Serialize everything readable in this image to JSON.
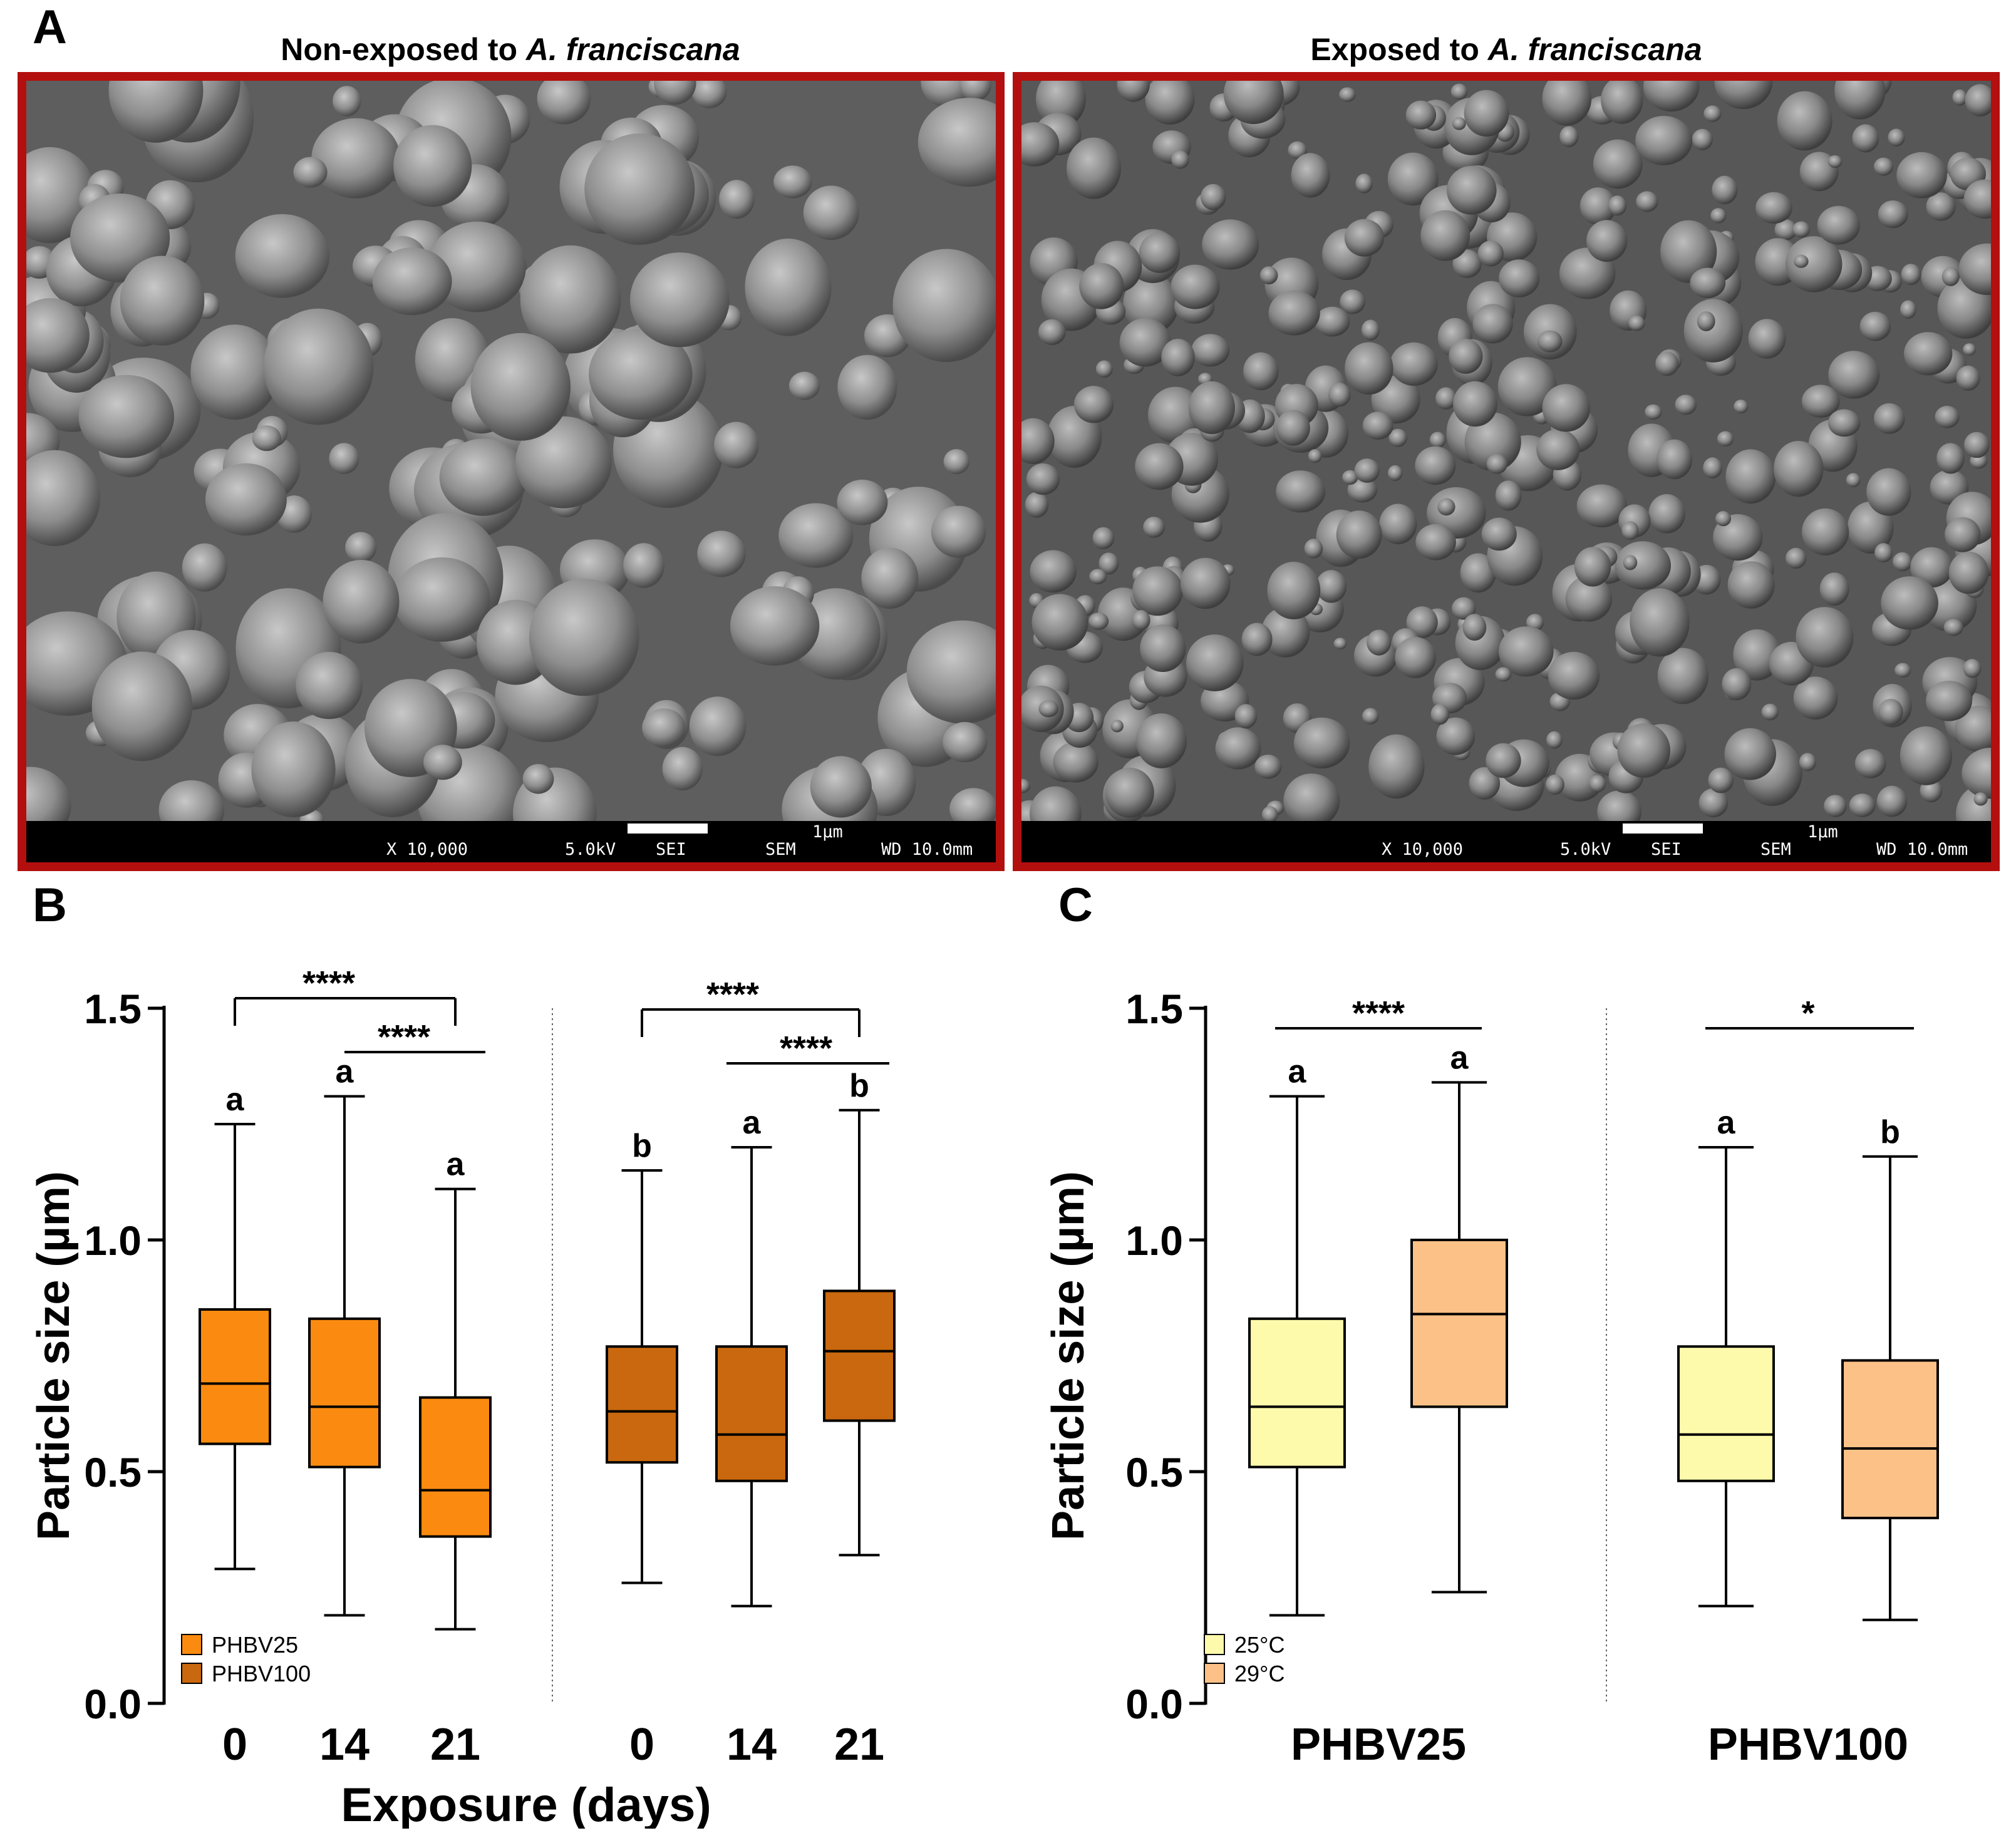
{
  "panel_letters": {
    "a": "A",
    "b": "B",
    "c": "C"
  },
  "sem_panels": [
    {
      "title_prefix": "Non-exposed to ",
      "title_italic": "A. franciscana",
      "magnification": "X 10,000",
      "voltage": "5.0kV",
      "detector": "SEI",
      "mode": "SEM",
      "wd": "WD 10.0mm",
      "scale": "1µm"
    },
    {
      "title_prefix": "Exposed to ",
      "title_italic": "A. franciscana",
      "magnification": "X 10,000",
      "voltage": "5.0kV",
      "detector": "SEI",
      "mode": "SEM",
      "wd": "WD 10.0mm",
      "scale": "1µm"
    }
  ],
  "colors": {
    "frame": "#b30f0f",
    "PHBV25": "#fb8b10",
    "PHBV100": "#c9680e",
    "25C": "#fdfbab",
    "29C": "#fcc187"
  },
  "chart_data": [
    {
      "type": "boxplot",
      "panel": "B",
      "ylabel": "Particle size (µm)",
      "xlabel": "Exposure (days)",
      "ylim": [
        0,
        1.5
      ],
      "yticks": [
        "0.0",
        "0.5",
        "1.0",
        "1.5"
      ],
      "legend": [
        {
          "name": "PHBV25",
          "color": "#fb8b10"
        },
        {
          "name": "PHBV100",
          "color": "#c9680e"
        }
      ],
      "legend_position": "bottom-left",
      "boxes": [
        {
          "category": "0",
          "series": "PHBV25",
          "min": 0.29,
          "q1": 0.56,
          "median": 0.69,
          "q3": 0.85,
          "max": 1.25,
          "letter": "a"
        },
        {
          "category": "14",
          "series": "PHBV25",
          "min": 0.19,
          "q1": 0.51,
          "median": 0.64,
          "q3": 0.83,
          "max": 1.31,
          "letter": "a"
        },
        {
          "category": "21",
          "series": "PHBV25",
          "min": 0.16,
          "q1": 0.36,
          "median": 0.46,
          "q3": 0.66,
          "max": 1.11,
          "letter": "a"
        },
        {
          "category": "0",
          "series": "PHBV100",
          "min": 0.26,
          "q1": 0.52,
          "median": 0.63,
          "q3": 0.77,
          "max": 1.15,
          "letter": "b"
        },
        {
          "category": "14",
          "series": "PHBV100",
          "min": 0.21,
          "q1": 0.48,
          "median": 0.58,
          "q3": 0.77,
          "max": 1.2,
          "letter": "a"
        },
        {
          "category": "21",
          "series": "PHBV100",
          "min": 0.32,
          "q1": 0.61,
          "median": 0.76,
          "q3": 0.89,
          "max": 1.28,
          "letter": "b"
        }
      ],
      "significance": [
        {
          "from": 0,
          "to": 2,
          "label": "****"
        },
        {
          "from": 1,
          "to": 2,
          "label": "****"
        },
        {
          "from": 3,
          "to": 5,
          "label": "****"
        },
        {
          "from": 4,
          "to": 5,
          "label": "****"
        }
      ]
    },
    {
      "type": "boxplot",
      "panel": "C",
      "ylabel": "Particle size (µm)",
      "categories": [
        "PHBV25",
        "PHBV100"
      ],
      "ylim": [
        0,
        1.5
      ],
      "yticks": [
        "0.0",
        "0.5",
        "1.0",
        "1.5"
      ],
      "legend": [
        {
          "name": "25°C",
          "color": "#fdfbab"
        },
        {
          "name": "29°C",
          "color": "#fcc187"
        }
      ],
      "legend_position": "bottom-left",
      "boxes": [
        {
          "category": "PHBV25",
          "series": "25°C",
          "min": 0.19,
          "q1": 0.51,
          "median": 0.64,
          "q3": 0.83,
          "max": 1.31,
          "letter": "a"
        },
        {
          "category": "PHBV25",
          "series": "29°C",
          "min": 0.24,
          "q1": 0.64,
          "median": 0.84,
          "q3": 1.0,
          "max": 1.34,
          "letter": "a"
        },
        {
          "category": "PHBV100",
          "series": "25°C",
          "min": 0.21,
          "q1": 0.48,
          "median": 0.58,
          "q3": 0.77,
          "max": 1.2,
          "letter": "a"
        },
        {
          "category": "PHBV100",
          "series": "29°C",
          "min": 0.18,
          "q1": 0.4,
          "median": 0.55,
          "q3": 0.74,
          "max": 1.18,
          "letter": "b"
        }
      ],
      "significance": [
        {
          "from": 0,
          "to": 1,
          "label": "****"
        },
        {
          "from": 2,
          "to": 3,
          "label": "*"
        }
      ]
    }
  ]
}
